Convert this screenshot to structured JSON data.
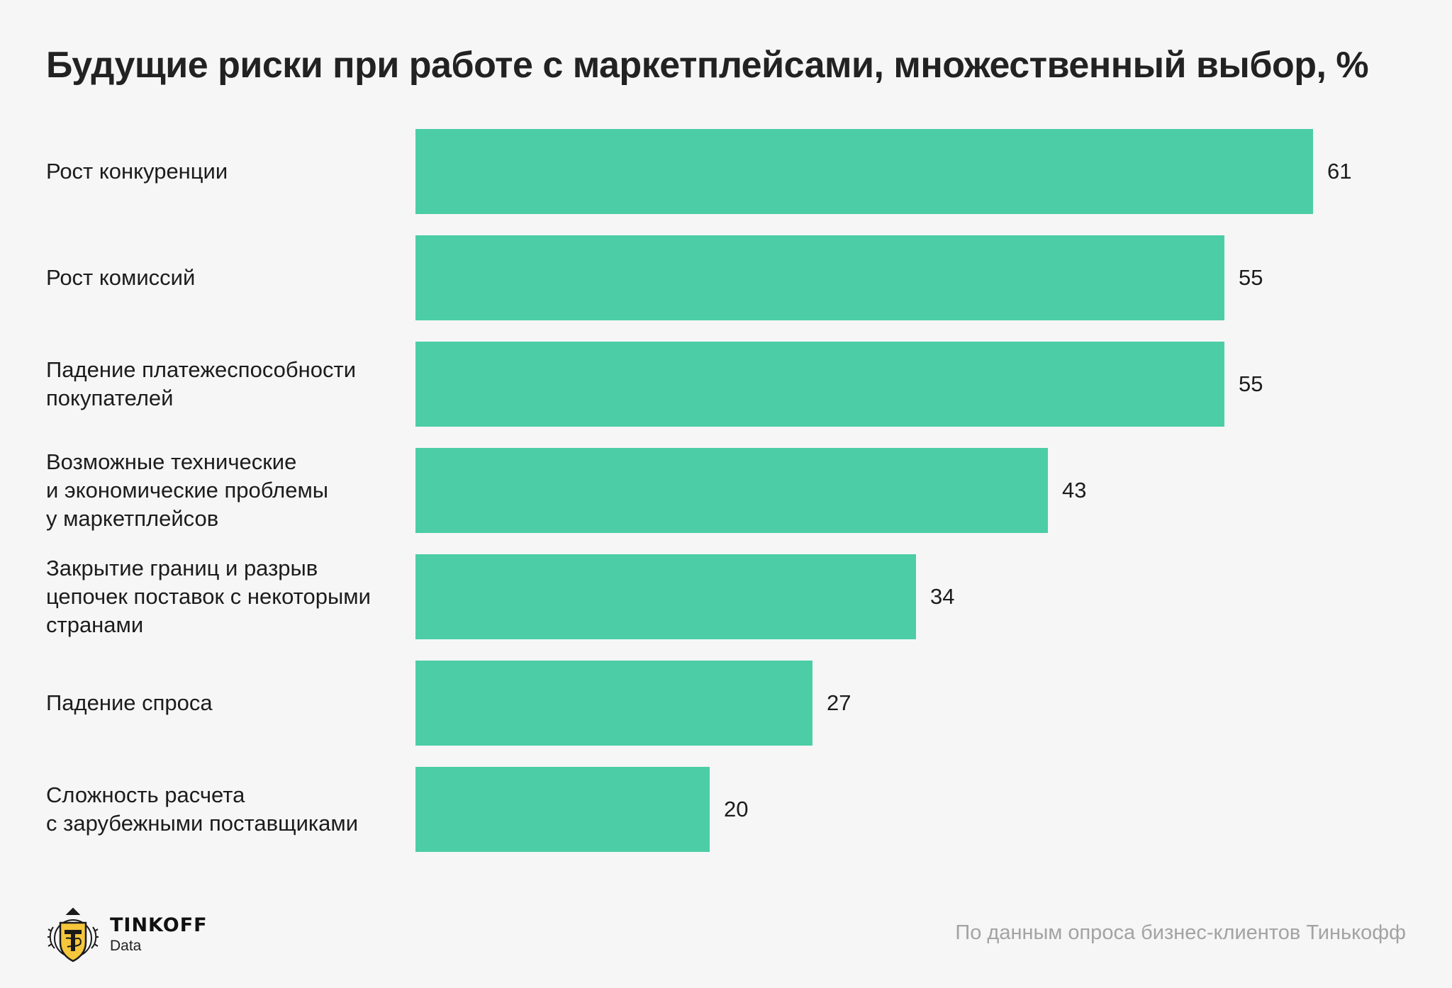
{
  "header": {
    "title": "Будущие риски при работе с маркетплейсами, множественный выбор, %"
  },
  "chart_data": {
    "type": "bar",
    "orientation": "horizontal",
    "title": "Будущие риски при работе с маркетплейсами, множественный выбор, %",
    "categories": [
      "Рост конкуренции",
      "Рост комиссий",
      "Падение платежеспособности\nпокупателей",
      "Возможные технические\nи экономические проблемы\nу маркетплейсов",
      "Закрытие границ и разрыв\nцепочек поставок с некоторыми\nстранами",
      "Падение спроса",
      "Сложность расчета\nс зарубежными поставщиками"
    ],
    "values": [
      61,
      55,
      55,
      43,
      34,
      27,
      20
    ],
    "bar_color": "#4ccda5",
    "grid": false,
    "legend": "none"
  },
  "footer": {
    "brand_name": "TINKOFF",
    "brand_sub": "Data",
    "logo_icon": "tinkoff-emblem-icon",
    "source": "По данным опроса бизнес-клиентов Тинькофф"
  }
}
